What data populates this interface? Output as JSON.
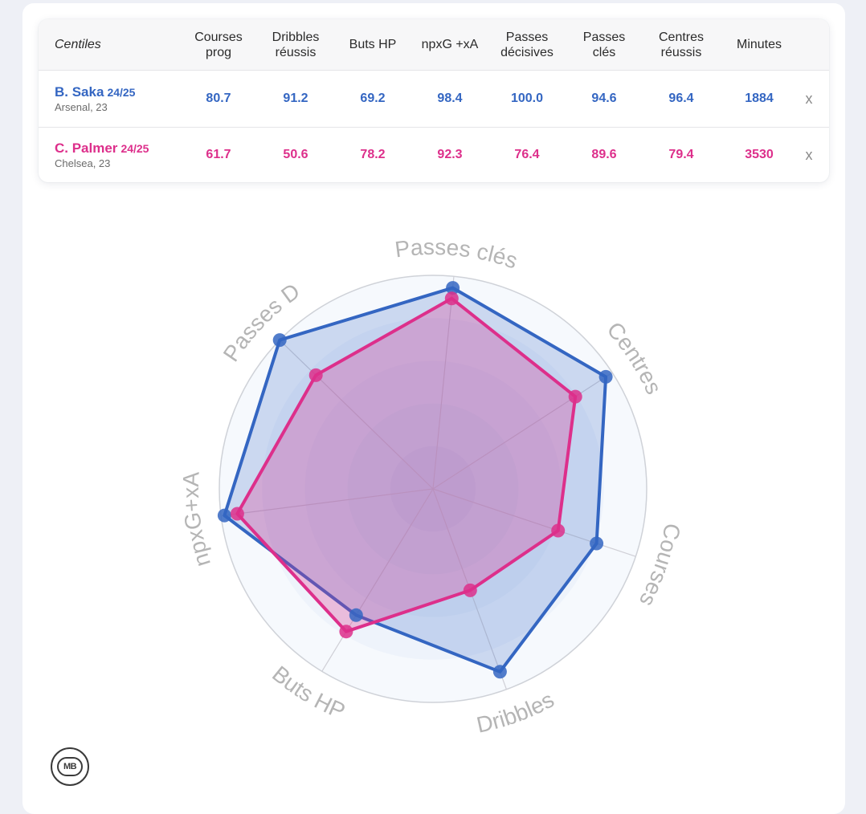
{
  "table": {
    "header_label": "Centiles",
    "columns": [
      [
        "Courses",
        "prog"
      ],
      [
        "Dribbles",
        "réussis"
      ],
      [
        "Buts HP"
      ],
      [
        "npxG +xA"
      ],
      [
        "Passes",
        "décisives"
      ],
      [
        "Passes",
        "clés"
      ],
      [
        "Centres",
        "réussis"
      ],
      [
        "Minutes"
      ]
    ],
    "remove_glyph": "x"
  },
  "players": [
    {
      "name": "B. Saka",
      "season": "24/25",
      "club": "Arsenal, 23",
      "color": "#3466c2",
      "values": [
        "80.7",
        "91.2",
        "69.2",
        "98.4",
        "100.0",
        "94.6",
        "96.4",
        "1884"
      ]
    },
    {
      "name": "C. Palmer",
      "season": "24/25",
      "club": "Chelsea, 23",
      "color": "#dd2f8b",
      "values": [
        "61.7",
        "50.6",
        "78.2",
        "92.3",
        "76.4",
        "89.6",
        "79.4",
        "3530"
      ]
    }
  ],
  "logo": {
    "text": "MB",
    "icon": "mb-logo-icon"
  },
  "chart_data": {
    "type": "radar",
    "axes": [
      "Passes clés",
      "Centres",
      "Courses",
      "Dribbles",
      "Buts HP",
      "npxG+xA",
      "Passes D"
    ],
    "range": [
      0,
      100
    ],
    "series": [
      {
        "name": "B. Saka",
        "color": "#3466c2",
        "values": [
          94.6,
          96.4,
          80.7,
          91.2,
          69.2,
          98.4,
          100.0
        ]
      },
      {
        "name": "C. Palmer",
        "color": "#dd2f8b",
        "values": [
          89.6,
          79.4,
          61.7,
          50.6,
          78.2,
          92.3,
          76.4
        ]
      }
    ],
    "ring_colors": [
      "#f6f9fd",
      "#eef3fb",
      "#e6eef9",
      "#dee9f6",
      "#d6e3f3"
    ],
    "label_color": "#b5b5b5"
  }
}
